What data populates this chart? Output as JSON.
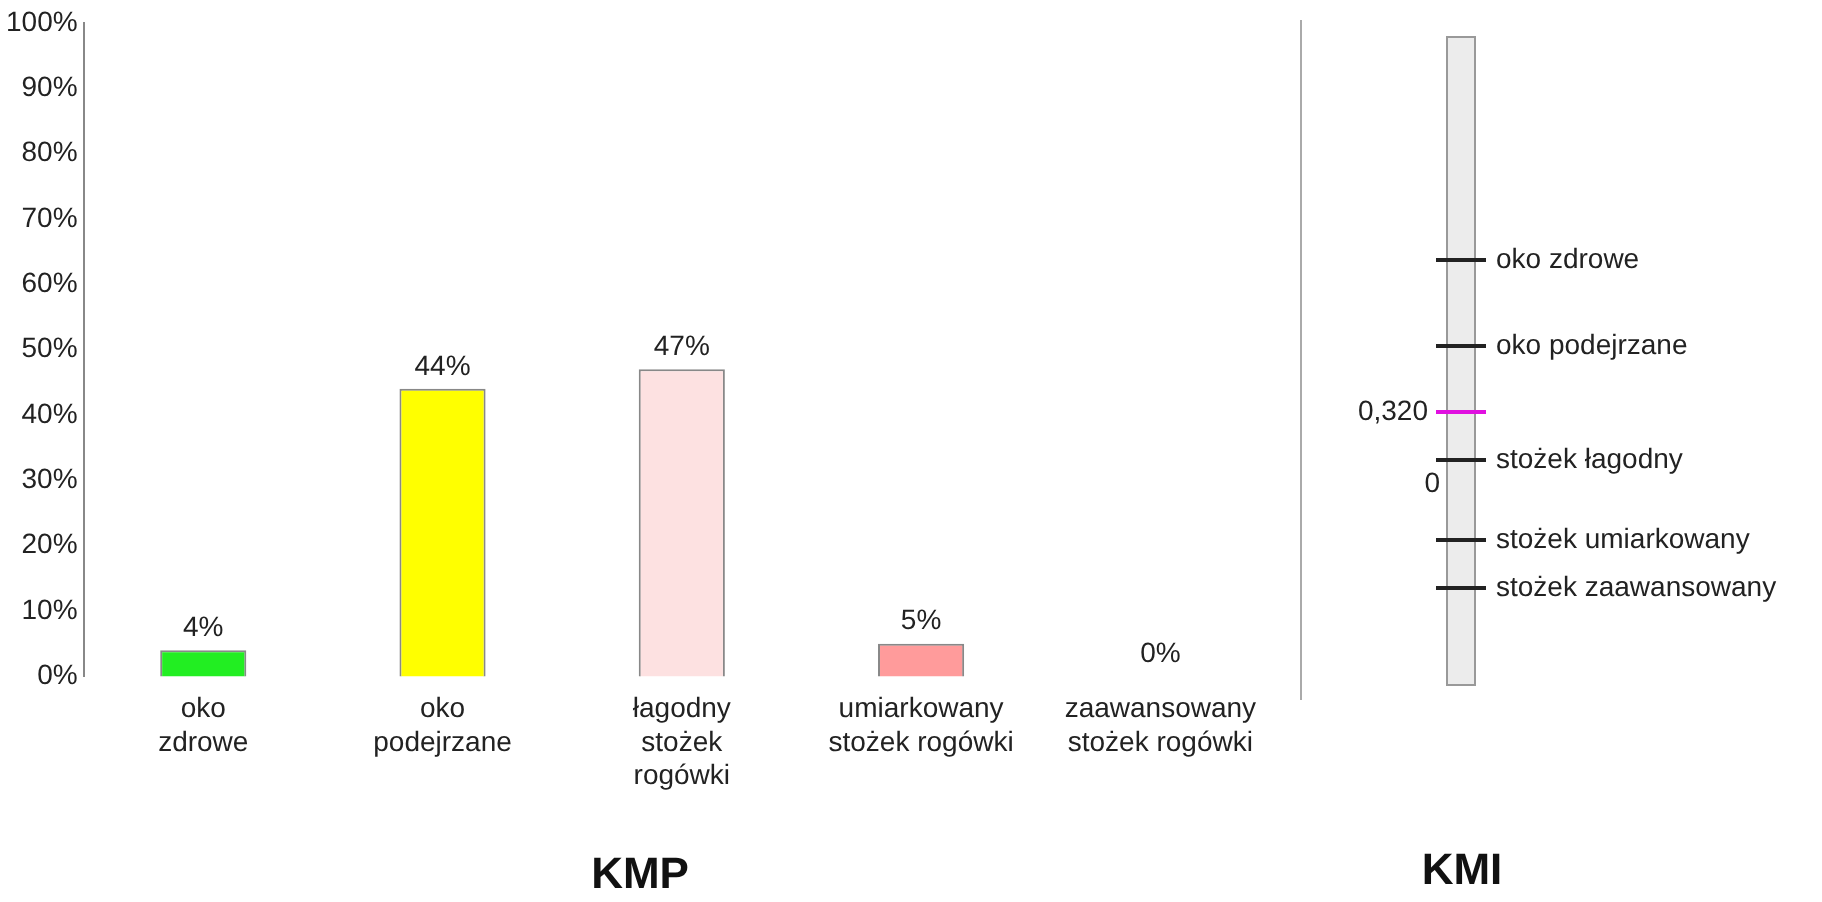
{
  "chart_data": [
    {
      "type": "bar",
      "title": "KMP",
      "categories": [
        "oko\nzdrowe",
        "oko\npodejrzane",
        "łagodny\nstożek\nrogówki",
        "umiarkowany\nstożek rogówki",
        "zaawansowany\nstożek rogówki"
      ],
      "values": [
        4,
        44,
        47,
        5,
        0
      ],
      "colors": [
        "#22ee22",
        "#ffff00",
        "#fde1e1",
        "#ff9b9b",
        "#f2f2f2"
      ],
      "value_labels": [
        "4%",
        "44%",
        "47%",
        "5%",
        "0%"
      ],
      "ylim": [
        0,
        100
      ],
      "yticks": [
        {
          "value": 0,
          "label": "0%"
        },
        {
          "value": 10,
          "label": "10%"
        },
        {
          "value": 20,
          "label": "20%"
        },
        {
          "value": 30,
          "label": "30%"
        },
        {
          "value": 40,
          "label": "40%"
        },
        {
          "value": 50,
          "label": "50%"
        },
        {
          "value": 60,
          "label": "60%"
        },
        {
          "value": 70,
          "label": "70%"
        },
        {
          "value": 80,
          "label": "80%"
        },
        {
          "value": 90,
          "label": "90%"
        },
        {
          "value": 100,
          "label": "100%"
        }
      ],
      "grid": false,
      "legend": false
    },
    {
      "type": "other",
      "title": "KMI",
      "annotations": [
        "oko zdrowe",
        "oko podejrzane",
        "0,320",
        "stożek łagodny",
        "0",
        "stożek umiarkowany",
        "stożek zaawansowany"
      ]
    }
  ]
}
